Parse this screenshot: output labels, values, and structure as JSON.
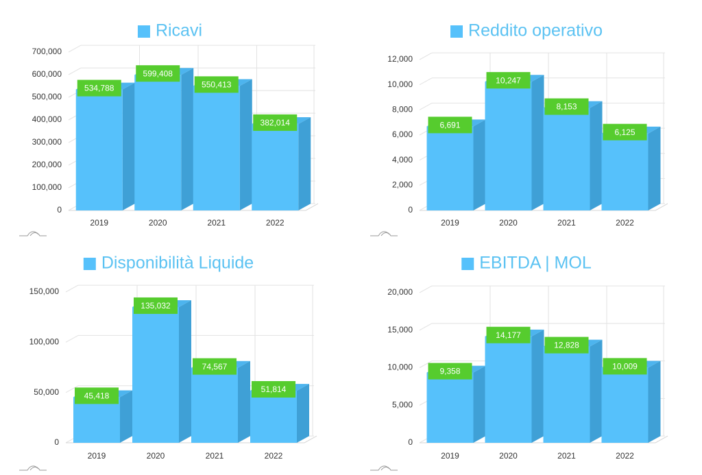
{
  "colors": {
    "bar_front": "#56C1FB",
    "bar_side": "#3FA0D6",
    "bar_top": "#4DB4EE",
    "label_bg": "#56CC2E",
    "label_text": "#ffffff",
    "title_text": "#5BC2F2",
    "axis_text": "#333333",
    "grid": "#e2e2e2"
  },
  "chart_data": [
    {
      "type": "bar",
      "title": "Ricavi",
      "categories": [
        "2019",
        "2020",
        "2021",
        "2022"
      ],
      "values": [
        534788,
        599408,
        550413,
        382014
      ],
      "value_labels": [
        "534,788",
        "599,408",
        "550,413",
        "382,014"
      ],
      "yticks": [
        0,
        100000,
        200000,
        300000,
        400000,
        500000,
        600000,
        700000
      ],
      "ytick_labels": [
        "0",
        "100,000",
        "200,000",
        "300,000",
        "400,000",
        "500,000",
        "600,000",
        "700,000"
      ],
      "ylim": [
        0,
        700000
      ],
      "legend": "top-center",
      "grid": true
    },
    {
      "type": "bar",
      "title": "Reddito operativo",
      "categories": [
        "2019",
        "2020",
        "2021",
        "2022"
      ],
      "values": [
        6691,
        10247,
        8153,
        6125
      ],
      "value_labels": [
        "6,691",
        "10,247",
        "8,153",
        "6,125"
      ],
      "yticks": [
        0,
        2000,
        4000,
        6000,
        8000,
        10000,
        12000
      ],
      "ytick_labels": [
        "0",
        "2,000",
        "4,000",
        "6,000",
        "8,000",
        "10,000",
        "12,000"
      ],
      "ylim": [
        0,
        12000
      ],
      "legend": "top-center",
      "grid": true
    },
    {
      "type": "bar",
      "title": "Disponibilità Liquide",
      "categories": [
        "2019",
        "2020",
        "2021",
        "2022"
      ],
      "values": [
        45418,
        135032,
        74567,
        51814
      ],
      "value_labels": [
        "45,418",
        "135,032",
        "74,567",
        "51,814"
      ],
      "yticks": [
        0,
        50000,
        100000,
        150000
      ],
      "ytick_labels": [
        "0",
        "50,000",
        "100,000",
        "150,000"
      ],
      "ylim": [
        0,
        150000
      ],
      "legend": "top-center",
      "grid": true
    },
    {
      "type": "bar",
      "title": "EBITDA | MOL",
      "categories": [
        "2019",
        "2020",
        "2021",
        "2022"
      ],
      "values": [
        9358,
        14177,
        12828,
        10009
      ],
      "value_labels": [
        "9,358",
        "14,177",
        "12,828",
        "10,009"
      ],
      "yticks": [
        0,
        5000,
        10000,
        15000,
        20000
      ],
      "ytick_labels": [
        "0",
        "5,000",
        "10,000",
        "15,000",
        "20,000"
      ],
      "ylim": [
        0,
        20000
      ],
      "legend": "top-center",
      "grid": true
    }
  ]
}
